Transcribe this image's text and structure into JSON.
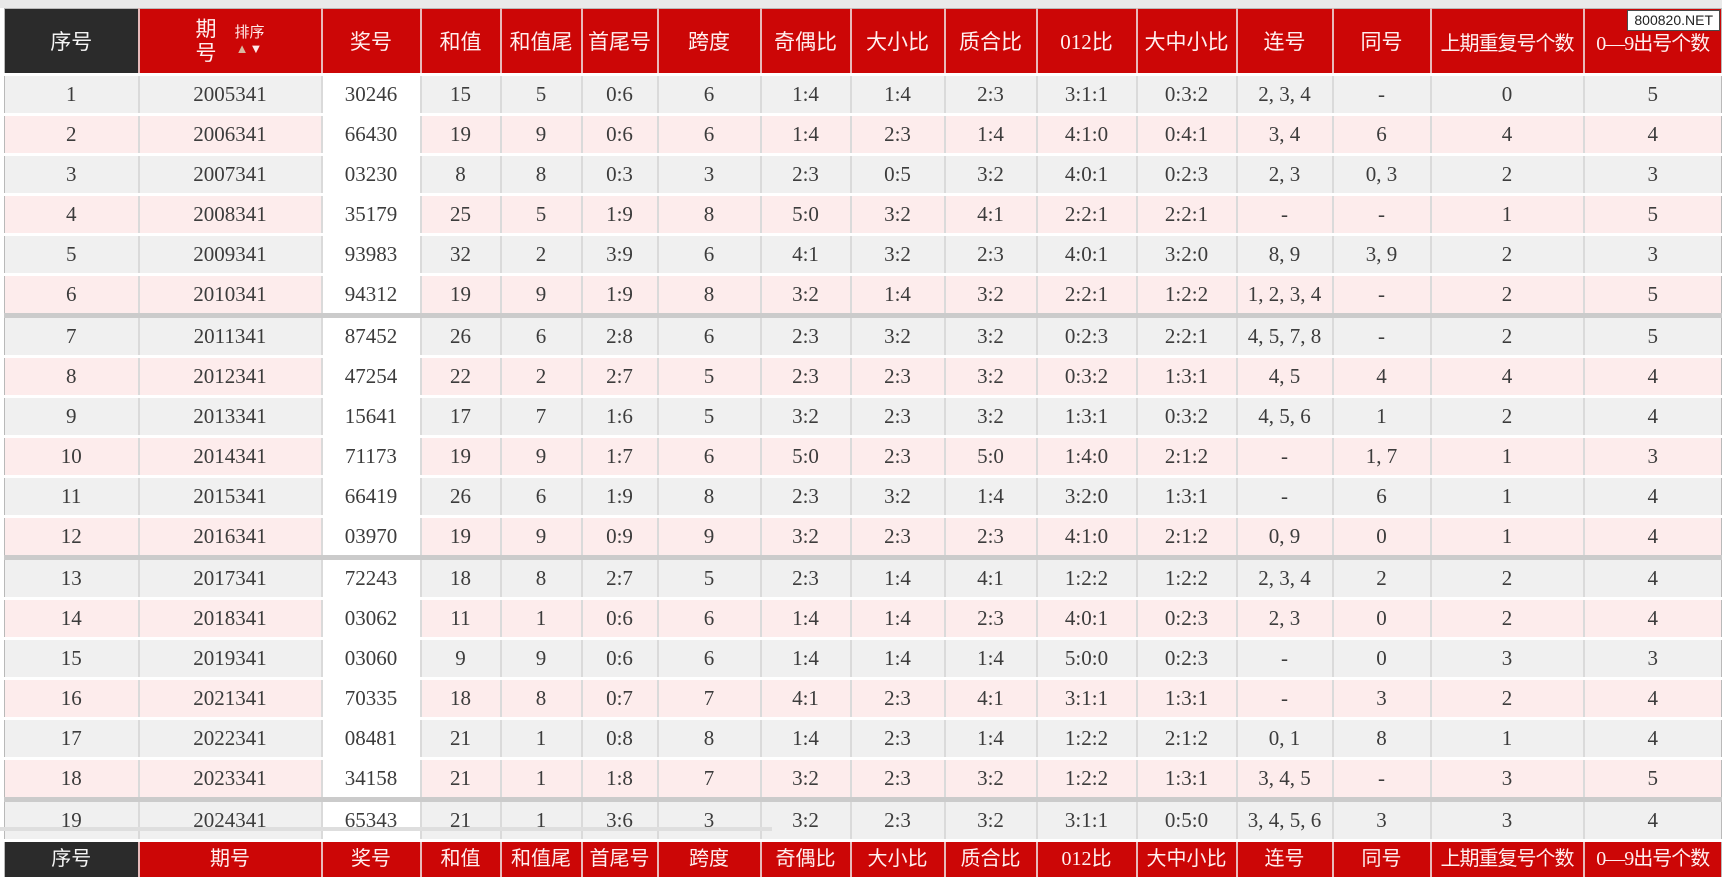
{
  "watermark": "800820.NET",
  "sort": {
    "label": "排序",
    "up": "▲",
    "down": "▼"
  },
  "columns": [
    {
      "key": "seq",
      "label": "序号"
    },
    {
      "key": "period",
      "label": "期号",
      "label_lines": [
        "期",
        "号"
      ]
    },
    {
      "key": "number",
      "label": "奖号"
    },
    {
      "key": "sum",
      "label": "和值"
    },
    {
      "key": "sum-tail",
      "label": "和值尾"
    },
    {
      "key": "min-max",
      "label": "首尾号"
    },
    {
      "key": "span",
      "label": "跨度"
    },
    {
      "key": "odd-even",
      "label": "奇偶比"
    },
    {
      "key": "big-small",
      "label": "大小比"
    },
    {
      "key": "prime-comp",
      "label": "质合比"
    },
    {
      "key": "ratio-012",
      "label": "012比"
    },
    {
      "key": "big-mid-small",
      "label": "大中小比"
    },
    {
      "key": "consecutive",
      "label": "连号"
    },
    {
      "key": "same",
      "label": "同号"
    },
    {
      "key": "repeat-prev",
      "label": "上期重复号个数"
    },
    {
      "key": "digit-count",
      "label": "0—9出号个数"
    }
  ],
  "rows": [
    [
      "1",
      "2005341",
      "30246",
      "15",
      "5",
      "0:6",
      "6",
      "1:4",
      "1:4",
      "2:3",
      "3:1:1",
      "0:3:2",
      "2, 3, 4",
      "-",
      "0",
      "5"
    ],
    [
      "2",
      "2006341",
      "66430",
      "19",
      "9",
      "0:6",
      "6",
      "1:4",
      "2:3",
      "1:4",
      "4:1:0",
      "0:4:1",
      "3, 4",
      "6",
      "4",
      "4"
    ],
    [
      "3",
      "2007341",
      "03230",
      "8",
      "8",
      "0:3",
      "3",
      "2:3",
      "0:5",
      "3:2",
      "4:0:1",
      "0:2:3",
      "2, 3",
      "0, 3",
      "2",
      "3"
    ],
    [
      "4",
      "2008341",
      "35179",
      "25",
      "5",
      "1:9",
      "8",
      "5:0",
      "3:2",
      "4:1",
      "2:2:1",
      "2:2:1",
      "-",
      "-",
      "1",
      "5"
    ],
    [
      "5",
      "2009341",
      "93983",
      "32",
      "2",
      "3:9",
      "6",
      "4:1",
      "3:2",
      "2:3",
      "4:0:1",
      "3:2:0",
      "8, 9",
      "3, 9",
      "2",
      "3"
    ],
    [
      "6",
      "2010341",
      "94312",
      "19",
      "9",
      "1:9",
      "8",
      "3:2",
      "1:4",
      "3:2",
      "2:2:1",
      "1:2:2",
      "1, 2, 3, 4",
      "-",
      "2",
      "5"
    ],
    [
      "7",
      "2011341",
      "87452",
      "26",
      "6",
      "2:8",
      "6",
      "2:3",
      "3:2",
      "3:2",
      "0:2:3",
      "2:2:1",
      "4, 5, 7, 8",
      "-",
      "2",
      "5"
    ],
    [
      "8",
      "2012341",
      "47254",
      "22",
      "2",
      "2:7",
      "5",
      "2:3",
      "2:3",
      "3:2",
      "0:3:2",
      "1:3:1",
      "4, 5",
      "4",
      "4",
      "4"
    ],
    [
      "9",
      "2013341",
      "15641",
      "17",
      "7",
      "1:6",
      "5",
      "3:2",
      "2:3",
      "3:2",
      "1:3:1",
      "0:3:2",
      "4, 5, 6",
      "1",
      "2",
      "4"
    ],
    [
      "10",
      "2014341",
      "71173",
      "19",
      "9",
      "1:7",
      "6",
      "5:0",
      "2:3",
      "5:0",
      "1:4:0",
      "2:1:2",
      "-",
      "1, 7",
      "1",
      "3"
    ],
    [
      "11",
      "2015341",
      "66419",
      "26",
      "6",
      "1:9",
      "8",
      "2:3",
      "3:2",
      "1:4",
      "3:2:0",
      "1:3:1",
      "-",
      "6",
      "1",
      "4"
    ],
    [
      "12",
      "2016341",
      "03970",
      "19",
      "9",
      "0:9",
      "9",
      "3:2",
      "2:3",
      "2:3",
      "4:1:0",
      "2:1:2",
      "0, 9",
      "0",
      "1",
      "4"
    ],
    [
      "13",
      "2017341",
      "72243",
      "18",
      "8",
      "2:7",
      "5",
      "2:3",
      "1:4",
      "4:1",
      "1:2:2",
      "1:2:2",
      "2, 3, 4",
      "2",
      "2",
      "4"
    ],
    [
      "14",
      "2018341",
      "03062",
      "11",
      "1",
      "0:6",
      "6",
      "1:4",
      "1:4",
      "2:3",
      "4:0:1",
      "0:2:3",
      "2, 3",
      "0",
      "2",
      "4"
    ],
    [
      "15",
      "2019341",
      "03060",
      "9",
      "9",
      "0:6",
      "6",
      "1:4",
      "1:4",
      "1:4",
      "5:0:0",
      "0:2:3",
      "-",
      "0",
      "3",
      "3"
    ],
    [
      "16",
      "2021341",
      "70335",
      "18",
      "8",
      "0:7",
      "7",
      "4:1",
      "2:3",
      "4:1",
      "3:1:1",
      "1:3:1",
      "-",
      "3",
      "2",
      "4"
    ],
    [
      "17",
      "2022341",
      "08481",
      "21",
      "1",
      "0:8",
      "8",
      "1:4",
      "2:3",
      "1:4",
      "1:2:2",
      "2:1:2",
      "0, 1",
      "8",
      "1",
      "4"
    ],
    [
      "18",
      "2023341",
      "34158",
      "21",
      "1",
      "1:8",
      "7",
      "3:2",
      "2:3",
      "3:2",
      "1:2:2",
      "1:3:1",
      "3, 4, 5",
      "-",
      "3",
      "5"
    ],
    [
      "19",
      "2024341",
      "65343",
      "21",
      "1",
      "3:6",
      "3",
      "3:2",
      "2:3",
      "3:2",
      "3:1:1",
      "0:5:0",
      "3, 4, 5, 6",
      "3",
      "3",
      "4"
    ]
  ],
  "colors": {
    "header_red": "#cc0606",
    "dark_header": "#2b2b2b",
    "row_gray": "#f0f0f0",
    "row_pink": "#fdecec",
    "number_column_bg": "#ffffff",
    "group_separator": "#cbcbcb"
  }
}
